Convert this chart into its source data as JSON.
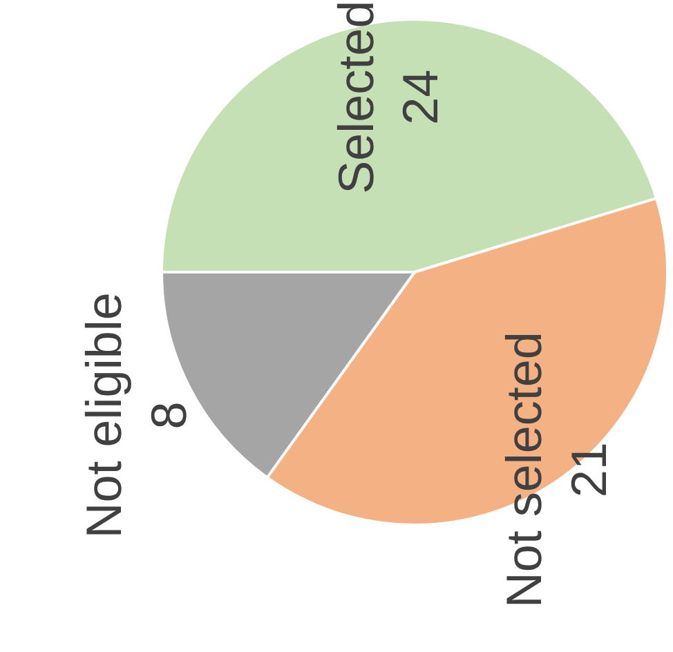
{
  "chart_data": {
    "type": "pie",
    "categories": [
      "Selected",
      "Not selected",
      "Not eligible"
    ],
    "values": [
      24,
      21,
      8
    ],
    "colors": [
      "#c5e0b4",
      "#f4b183",
      "#a5a5a5"
    ],
    "data_labels": true
  }
}
